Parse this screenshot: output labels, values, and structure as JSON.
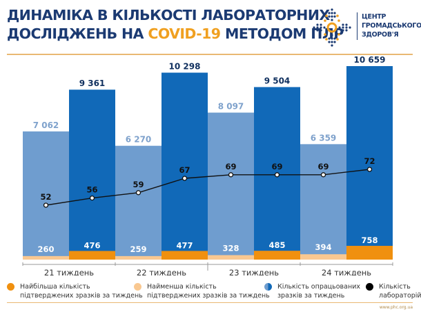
{
  "header": {
    "title_line1": "ДИНАМІКА В КІЛЬКОСТІ ЛАБОРАТОРНИХ",
    "title_line2_pre": "ДОСЛІДЖЕНЬ НА ",
    "title_line2_hl": "COVID-19",
    "title_line2_post": " МЕТОДОМ ПЛР",
    "org_line1": "ЦЕНТР",
    "org_line2": "ГРОМАДСЬКОГО",
    "org_line3": "ЗДОРОВ'Я"
  },
  "colors": {
    "light_blue": "#6f9dcf",
    "dark_blue": "#1169b8",
    "light_orange": "#f9c891",
    "orange": "#f0900f",
    "line": "#111111",
    "title": "#1b3a72",
    "accent": "#f0a020"
  },
  "chart_data": {
    "type": "bar",
    "categories": [
      "21 тиждень",
      "22 тиждень",
      "23 тиждень",
      "24 тиждень"
    ],
    "processed_samples": {
      "name": "Кількість опрацьованих зразків за тиждень",
      "light": [
        7062,
        6270,
        8097,
        6359
      ],
      "dark": [
        9361,
        10298,
        9504,
        10659
      ],
      "labels_light": [
        "7 062",
        "6 270",
        "8 097",
        "6 359"
      ],
      "labels_dark": [
        "9 361",
        "10 298",
        "9 504",
        "10 659"
      ]
    },
    "min_confirmed": {
      "name": "Найменша кількість підтверджених зразків за тиждень",
      "values": [
        260,
        259,
        328,
        394
      ]
    },
    "max_confirmed": {
      "name": "Найбільша кількість підтверджених зразків за тиждень",
      "values": [
        476,
        477,
        485,
        758
      ]
    },
    "laboratories": {
      "name": "Кількість лабораторій",
      "type": "line",
      "values": [
        52,
        56,
        59,
        67,
        69,
        69,
        69,
        72
      ]
    },
    "ylim": [
      0,
      10659
    ],
    "grid": false,
    "legend_placement": "bottom"
  },
  "legend": [
    {
      "line1": "Найбільша кількість",
      "line2": "підтверджених зразків за тиждень"
    },
    {
      "line1": "Найменша кількість",
      "line2": "підтверджених зразків за тиждень"
    },
    {
      "line1": "Кількість опрацьованих",
      "line2": "зразків за тиждень"
    },
    {
      "line1": "Кількість",
      "line2": "лабораторій"
    }
  ],
  "footer": {
    "url": "www.phc.org.ua"
  }
}
